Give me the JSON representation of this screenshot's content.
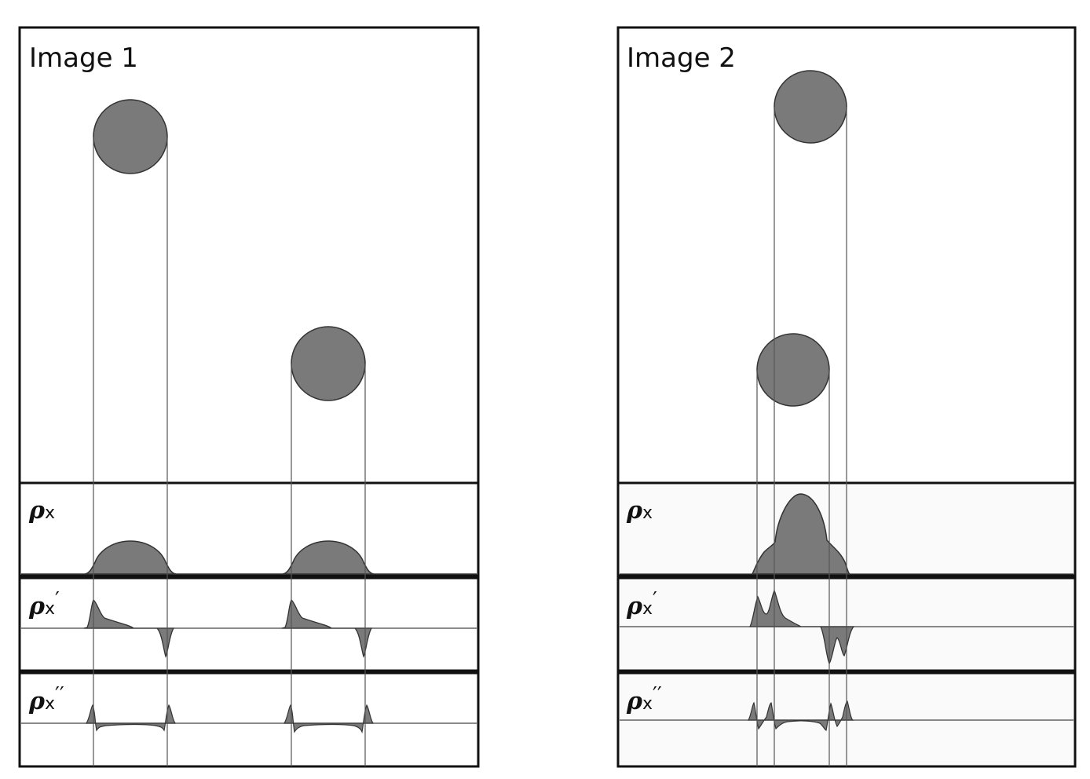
{
  "panels": [
    {
      "title": "Image 1",
      "circles": [
        {
          "name": "large-circle"
        },
        {
          "name": "small-circle"
        }
      ],
      "tracks": [
        {
          "symbol": "ρ",
          "sub": "x",
          "prime": ""
        },
        {
          "symbol": "ρ",
          "sub": "x",
          "prime": "′"
        },
        {
          "symbol": "ρ",
          "sub": "x",
          "prime": "′′"
        }
      ]
    },
    {
      "title": "Image 2",
      "circles": [
        {
          "name": "upper-circle"
        },
        {
          "name": "lower-circle"
        }
      ],
      "tracks": [
        {
          "symbol": "ρ",
          "sub": "x",
          "prime": ""
        },
        {
          "symbol": "ρ",
          "sub": "x",
          "prime": "′"
        },
        {
          "symbol": "ρ",
          "sub": "x",
          "prime": "′′"
        }
      ]
    }
  ],
  "colors": {
    "fill": "#7a7a7a",
    "stroke": "#333333",
    "frame": "#111111",
    "guide": "#555555",
    "track_bg_right": "#fafafa"
  }
}
